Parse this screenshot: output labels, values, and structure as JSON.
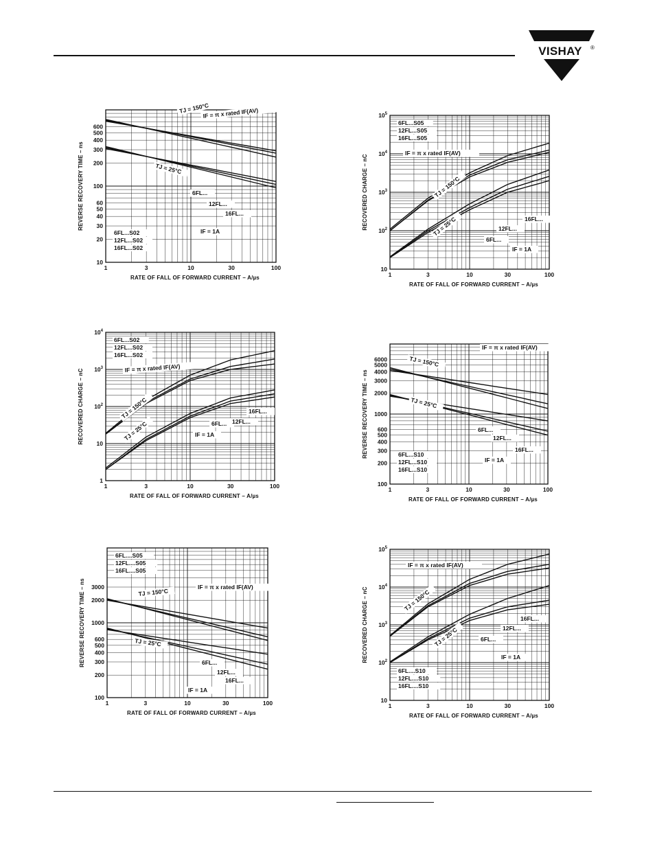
{
  "brand": {
    "name": "VISHAY",
    "trademark": "®"
  },
  "colors": {
    "ink": "#111111",
    "paper": "#ffffff"
  },
  "chart_data": [
    {
      "type": "line",
      "ylabel": "REVERSE RECOVERY TIME – ns",
      "xlabel": "RATE OF FALL OF FORWARD CURRENT – A/µs",
      "xscale": "log",
      "yscale": "log",
      "xlim": [
        1,
        100
      ],
      "ylim": [
        10,
        1000
      ],
      "xticks": [
        1,
        3,
        10,
        30,
        100
      ],
      "ytick_labels": [
        "10",
        "20",
        "30",
        "40",
        "50",
        "60",
        "100",
        "200",
        "300",
        "400",
        "500",
        "600"
      ],
      "ytick_values": [
        10,
        20,
        30,
        40,
        50,
        60,
        100,
        200,
        300,
        400,
        500,
        600
      ],
      "grid": true,
      "annotations": [
        "TJ = 150°C",
        "IF = π x rated IF(AV)",
        "TJ = 25°C",
        "6FL...",
        "12FL...",
        "16FL...",
        "IF = 1A"
      ],
      "legend": [
        "6FL...S02",
        "12FL...S02",
        "16FL...S02"
      ],
      "legend_position": "bottom-left",
      "series": [
        {
          "name": "6FL...",
          "condition": "TJ = 150°C",
          "x": [
            1,
            100
          ],
          "y": [
            750,
            240
          ]
        },
        {
          "name": "12FL...",
          "condition": "TJ = 150°C",
          "x": [
            1,
            100
          ],
          "y": [
            730,
            270
          ]
        },
        {
          "name": "16FL...",
          "condition": "TJ = 150°C",
          "x": [
            1,
            100
          ],
          "y": [
            710,
            290
          ]
        },
        {
          "name": "6FL...",
          "condition": "TJ = 25°C",
          "x": [
            1,
            100
          ],
          "y": [
            330,
            95
          ]
        },
        {
          "name": "12FL...",
          "condition": "TJ = 25°C",
          "x": [
            1,
            100
          ],
          "y": [
            320,
            105
          ]
        },
        {
          "name": "16FL...",
          "condition": "TJ = 25°C",
          "x": [
            1,
            100
          ],
          "y": [
            310,
            115
          ]
        }
      ]
    },
    {
      "type": "line",
      "ylabel": "RECOVERED CHARGE – nC",
      "xlabel": "RATE OF FALL OF FORWARD CURRENT – A/µs",
      "xscale": "log",
      "yscale": "log",
      "xlim": [
        1,
        100
      ],
      "ylim": [
        10,
        100000
      ],
      "xticks": [
        1,
        3,
        10,
        30,
        100
      ],
      "ytick_labels": [
        "10",
        "10²",
        "10³",
        "10⁴",
        "10⁵"
      ],
      "ytick_values": [
        10,
        100,
        1000,
        10000,
        100000
      ],
      "grid": true,
      "annotations": [
        "IF = π x rated IF(AV)",
        "TJ = 150°C",
        "TJ = 25°C",
        "6FL...",
        "12FL...",
        "16FL...",
        "IF = 1A"
      ],
      "legend": [
        "6FL...S05",
        "12FL...S05",
        "16FL...S05"
      ],
      "legend_position": "top-left",
      "series": [
        {
          "name": "6FL...",
          "condition": "TJ = 150°C",
          "x": [
            1,
            3,
            10,
            30,
            100
          ],
          "y": [
            100,
            600,
            2500,
            6000,
            11000
          ]
        },
        {
          "name": "12FL...",
          "condition": "TJ = 150°C",
          "x": [
            1,
            3,
            10,
            30,
            100
          ],
          "y": [
            100,
            620,
            2800,
            7000,
            12500
          ]
        },
        {
          "name": "16FL...",
          "condition": "TJ = 150°C",
          "x": [
            1,
            3,
            10,
            30,
            100
          ],
          "y": [
            110,
            700,
            3200,
            9000,
            19000
          ]
        },
        {
          "name": "6FL...",
          "condition": "TJ = 25°C",
          "x": [
            1,
            3,
            10,
            30,
            100
          ],
          "y": [
            20,
            90,
            350,
            1000,
            2000
          ]
        },
        {
          "name": "12FL...",
          "condition": "TJ = 25°C",
          "x": [
            1,
            3,
            10,
            30,
            100
          ],
          "y": [
            20,
            100,
            400,
            1200,
            2600
          ]
        },
        {
          "name": "16FL...",
          "condition": "TJ = 25°C",
          "x": [
            1,
            3,
            10,
            30,
            100
          ],
          "y": [
            21,
            110,
            500,
            1600,
            3800
          ]
        }
      ]
    },
    {
      "type": "line",
      "ylabel": "RECOVERED CHARGE – nC",
      "xlabel": "RATE OF FALL OF FORWARD CURRENT – A/µs",
      "xscale": "log",
      "yscale": "log",
      "xlim": [
        1,
        100
      ],
      "ylim": [
        1,
        10000
      ],
      "xticks": [
        1,
        3,
        10,
        30,
        100
      ],
      "ytick_labels": [
        "1",
        "10",
        "10²",
        "10³",
        "10⁴"
      ],
      "ytick_values": [
        1,
        10,
        100,
        1000,
        10000
      ],
      "grid": true,
      "annotations": [
        "IF = π x rated IF(AV)",
        "TJ = 150°C",
        "TJ = 25°C",
        "6FL...",
        "12FL...",
        "16FL...",
        "IF = 1A"
      ],
      "legend": [
        "6FL...S02",
        "12FL...S02",
        "16FL...S02"
      ],
      "legend_position": "top-left",
      "series": [
        {
          "name": "6FL...",
          "condition": "TJ = 150°C",
          "x": [
            1,
            3,
            10,
            30,
            100
          ],
          "y": [
            18,
            120,
            500,
            1000,
            1400
          ]
        },
        {
          "name": "12FL...",
          "condition": "TJ = 150°C",
          "x": [
            1,
            3,
            10,
            30,
            100
          ],
          "y": [
            18,
            130,
            550,
            1200,
            1900
          ]
        },
        {
          "name": "16FL...",
          "condition": "TJ = 150°C",
          "x": [
            1,
            3,
            10,
            30,
            100
          ],
          "y": [
            19,
            150,
            700,
            1800,
            3200
          ]
        },
        {
          "name": "6FL...",
          "condition": "TJ = 25°C",
          "x": [
            1,
            3,
            10,
            30,
            100
          ],
          "y": [
            2,
            12,
            50,
            120,
            180
          ]
        },
        {
          "name": "12FL...",
          "condition": "TJ = 25°C",
          "x": [
            1,
            3,
            10,
            30,
            100
          ],
          "y": [
            2,
            13,
            55,
            140,
            220
          ]
        },
        {
          "name": "16FL...",
          "condition": "TJ = 25°C",
          "x": [
            1,
            3,
            10,
            30,
            100
          ],
          "y": [
            2.2,
            15,
            65,
            170,
            280
          ]
        }
      ]
    },
    {
      "type": "line",
      "ylabel": "REVERSE RECOVERY TIME – ns",
      "xlabel": "RATE OF FALL OF FORWARD CURRENT – A/µs",
      "xscale": "log",
      "yscale": "log",
      "xlim": [
        1,
        100
      ],
      "ylim": [
        100,
        10000
      ],
      "xticks": [
        1,
        3,
        10,
        30,
        100
      ],
      "ytick_labels": [
        "100",
        "200",
        "300",
        "400",
        "500",
        "600",
        "1000",
        "2000",
        "3000",
        "4000",
        "5000",
        "6000"
      ],
      "ytick_values": [
        100,
        200,
        300,
        400,
        500,
        600,
        1000,
        2000,
        3000,
        4000,
        5000,
        6000
      ],
      "grid": true,
      "annotations": [
        "IF = π x rated IF(AV)",
        "TJ = 150°C",
        "TJ = 25°C",
        "6FL...",
        "12FL...",
        "16FL...",
        "IF = 1A"
      ],
      "legend": [
        "6FL...S10",
        "12FL...S10",
        "16FL...S10"
      ],
      "legend_position": "bottom-left",
      "series": [
        {
          "name": "6FL...",
          "condition": "TJ = 150°C",
          "x": [
            1,
            100
          ],
          "y": [
            4600,
            1200
          ]
        },
        {
          "name": "12FL...",
          "condition": "TJ = 150°C",
          "x": [
            1,
            100
          ],
          "y": [
            4400,
            1400
          ]
        },
        {
          "name": "16FL...",
          "condition": "TJ = 150°C",
          "x": [
            1,
            100
          ],
          "y": [
            4200,
            1900
          ]
        },
        {
          "name": "6FL...",
          "condition": "TJ = 25°C",
          "x": [
            1,
            100
          ],
          "y": [
            1900,
            500
          ]
        },
        {
          "name": "12FL...",
          "condition": "TJ = 25°C",
          "x": [
            1,
            100
          ],
          "y": [
            1850,
            570
          ]
        },
        {
          "name": "16FL...",
          "condition": "TJ = 25°C",
          "x": [
            1,
            100
          ],
          "y": [
            1800,
            800
          ]
        }
      ]
    },
    {
      "type": "line",
      "ylabel": "REVERSE RECOVERY TIME – ns",
      "xlabel": "RATE OF FALL OF FORWARD CURRENT – A/µs",
      "xscale": "log",
      "yscale": "log",
      "xlim": [
        1,
        100
      ],
      "ylim": [
        100,
        10000
      ],
      "xticks": [
        1,
        3,
        10,
        30,
        100
      ],
      "ytick_labels": [
        "100",
        "200",
        "300",
        "400",
        "500",
        "600",
        "1000",
        "2000",
        "3000"
      ],
      "ytick_values": [
        100,
        200,
        300,
        400,
        500,
        600,
        1000,
        2000,
        3000
      ],
      "grid": true,
      "annotations": [
        "IF = π x rated IF(AV)",
        "TJ = 150°C",
        "TJ = 25°C",
        "6FL...",
        "12FL...",
        "16FL...",
        "IF = 1A"
      ],
      "legend": [
        "6FL....S05",
        "12FL....S05",
        "16FL....S05"
      ],
      "legend_position": "top-left",
      "series": [
        {
          "name": "6FL...",
          "condition": "TJ = 150°C",
          "x": [
            1,
            100
          ],
          "y": [
            2100,
            580
          ]
        },
        {
          "name": "12FL...",
          "condition": "TJ = 150°C",
          "x": [
            1,
            100
          ],
          "y": [
            2050,
            650
          ]
        },
        {
          "name": "16FL...",
          "condition": "TJ = 150°C",
          "x": [
            1,
            100
          ],
          "y": [
            2000,
            850
          ]
        },
        {
          "name": "6FL...",
          "condition": "TJ = 25°C",
          "x": [
            1,
            100
          ],
          "y": [
            850,
            240
          ]
        },
        {
          "name": "12FL...",
          "condition": "TJ = 25°C",
          "x": [
            1,
            100
          ],
          "y": [
            830,
            280
          ]
        },
        {
          "name": "16FL...",
          "condition": "TJ = 25°C",
          "x": [
            1,
            100
          ],
          "y": [
            810,
            380
          ]
        }
      ]
    },
    {
      "type": "line",
      "ylabel": "RECOVERED CHARGE – nC",
      "xlabel": "RATE OF FALL OF FORWARD CURRENT – A/µs",
      "xscale": "log",
      "yscale": "log",
      "xlim": [
        1,
        100
      ],
      "ylim": [
        10,
        100000
      ],
      "xticks": [
        1,
        3,
        10,
        30,
        100
      ],
      "ytick_labels": [
        "10",
        "10²",
        "10³",
        "10⁴",
        "10⁵"
      ],
      "ytick_values": [
        10,
        100,
        1000,
        10000,
        100000
      ],
      "grid": true,
      "annotations": [
        "IF = π x rated IF(AV)",
        "TJ = 150°C",
        "TJ = 25°C",
        "6FL...",
        "12FL...",
        "16FL...",
        "IF = 1A"
      ],
      "legend": [
        "6FL....S10",
        "12FL....S10",
        "16FL....S10"
      ],
      "legend_position": "bottom-left",
      "series": [
        {
          "name": "6FL...",
          "condition": "TJ = 150°C",
          "x": [
            1,
            3,
            10,
            30,
            100
          ],
          "y": [
            500,
            3000,
            11000,
            22000,
            32000
          ]
        },
        {
          "name": "12FL...",
          "condition": "TJ = 150°C",
          "x": [
            1,
            3,
            10,
            30,
            100
          ],
          "y": [
            500,
            3200,
            12500,
            26000,
            40000
          ]
        },
        {
          "name": "16FL...",
          "condition": "TJ = 150°C",
          "x": [
            1,
            3,
            10,
            30,
            100
          ],
          "y": [
            520,
            3600,
            16000,
            40000,
            75000
          ]
        },
        {
          "name": "6FL...",
          "condition": "TJ = 25°C",
          "x": [
            1,
            3,
            10,
            30,
            100
          ],
          "y": [
            100,
            400,
            1300,
            2500,
            3500
          ]
        },
        {
          "name": "12FL...",
          "condition": "TJ = 25°C",
          "x": [
            1,
            3,
            10,
            30,
            100
          ],
          "y": [
            100,
            430,
            1500,
            3000,
            4500
          ]
        },
        {
          "name": "16FL...",
          "condition": "TJ = 25°C",
          "x": [
            1,
            3,
            10,
            30,
            100
          ],
          "y": [
            105,
            480,
            1900,
            5000,
            11000
          ]
        }
      ]
    }
  ]
}
